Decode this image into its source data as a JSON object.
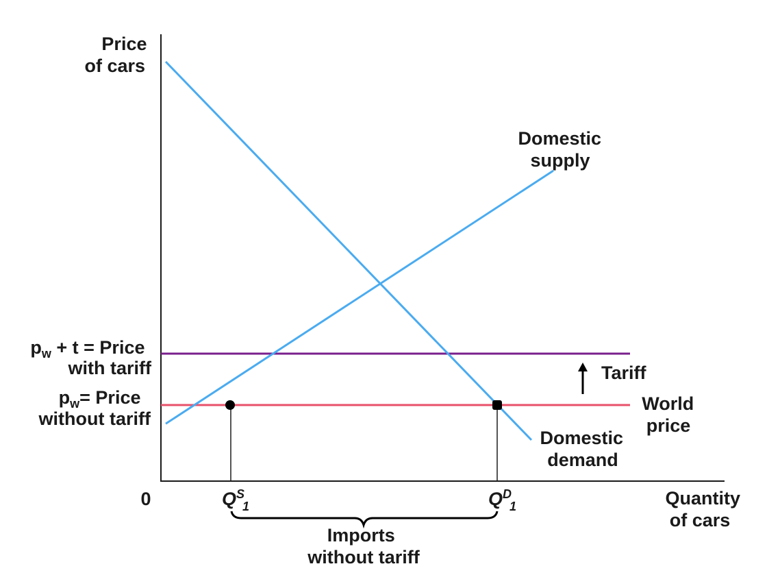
{
  "chart_data": {
    "type": "line",
    "axes": {
      "ylabel": [
        "Price",
        "of cars"
      ],
      "xlabel": [
        "Quantity",
        "of cars"
      ],
      "origin_label": "0"
    },
    "series": [
      {
        "name": "Domestic demand",
        "label_lines": [
          "Domestic",
          "demand"
        ],
        "color": "#4aabf0",
        "points": [
          [
            0,
            100
          ],
          [
            100,
            5
          ]
        ]
      },
      {
        "name": "Domestic supply",
        "label_lines": [
          "Domestic",
          "supply"
        ],
        "color": "#4aabf0",
        "points": [
          [
            0,
            7
          ],
          [
            100,
            72
          ]
        ]
      }
    ],
    "horizontal_lines": [
      {
        "name": "Price with tariff",
        "y": 30,
        "color": "#7a1f8c",
        "label_lines": [
          {
            "parts": [
              "p",
              "w",
              " + t = Price"
            ]
          },
          {
            "parts": [
              "with tariff"
            ]
          }
        ]
      },
      {
        "name": "World price",
        "y": 18,
        "color": "#e8506a",
        "label_lines": [
          {
            "parts": [
              "p",
              "w",
              "= Price"
            ]
          },
          {
            "parts": [
              "without tariff"
            ]
          }
        ],
        "right_label_lines": [
          "World",
          "price"
        ]
      }
    ],
    "quantity_markers": [
      {
        "id": "qs1",
        "x": 17.8,
        "label": {
          "base": "Q",
          "sup": "S",
          "sub": "1"
        }
      },
      {
        "id": "qd1",
        "x": 86.6,
        "label": {
          "base": "Q",
          "sup": "D",
          "sub": "1"
        }
      }
    ],
    "annotations": {
      "tariff": "Tariff",
      "imports": [
        "Imports",
        "without tariff"
      ]
    },
    "xlim": [
      0,
      100
    ],
    "ylim": [
      0,
      100
    ],
    "grid": false
  }
}
